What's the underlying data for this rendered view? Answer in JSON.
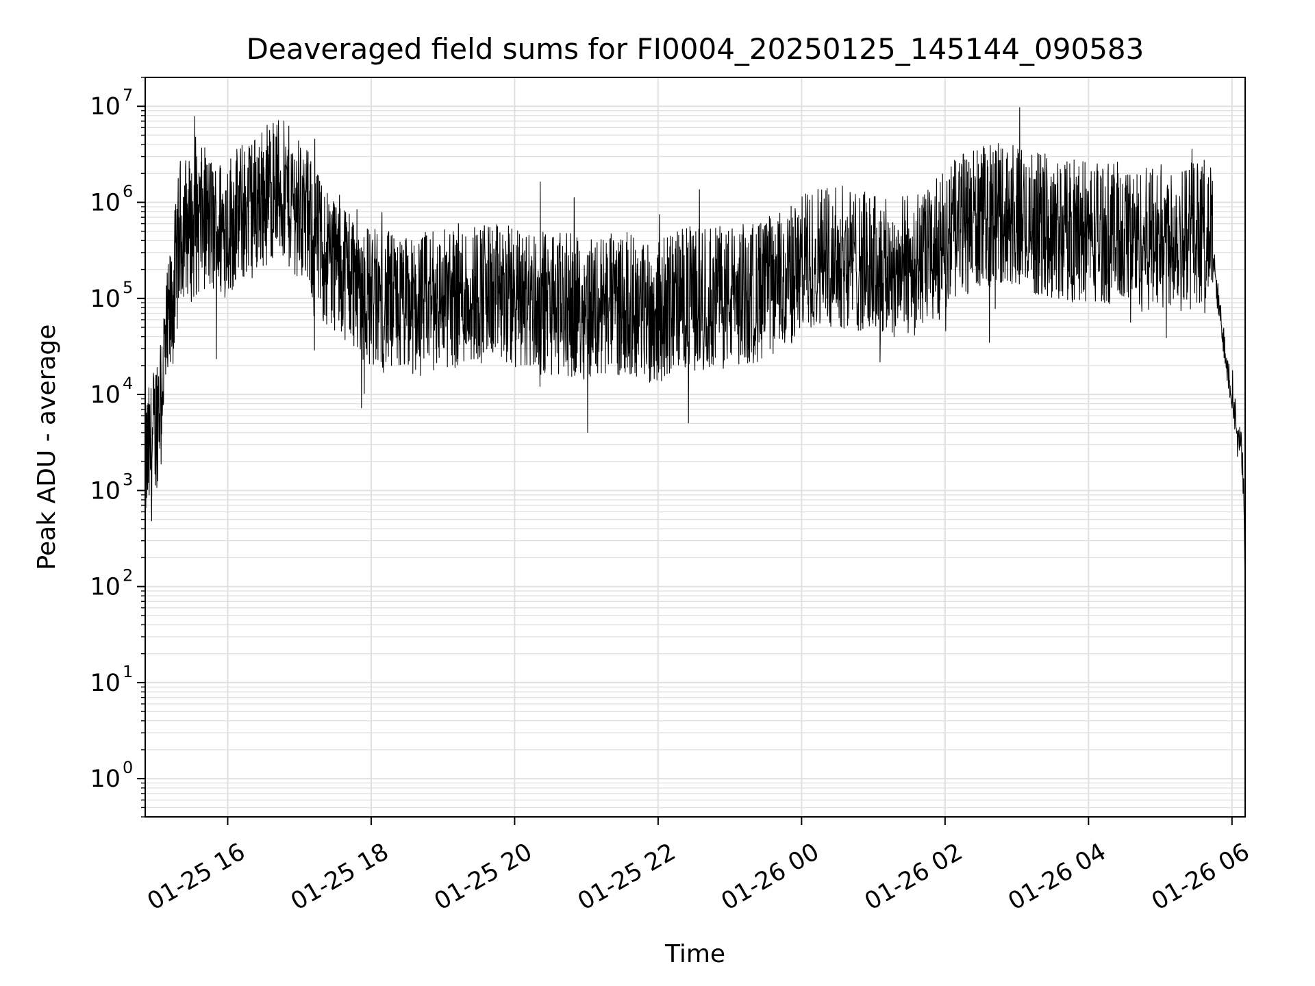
{
  "chart_data": {
    "type": "line",
    "title": "Deaveraged field sums for FI0004_20250125_145144_090583",
    "xlabel": "Time",
    "ylabel": "Peak ADU - average",
    "x_range": [
      "2025-01-25 14:51",
      "2025-01-26 06:11"
    ],
    "y_scale": "log",
    "ylim": [
      0.4,
      20000000
    ],
    "grid": true,
    "line_color": "#000000",
    "grid_color": "#e0e0e0",
    "x_ticks": [
      {
        "value": "2025-01-25 16:00",
        "label": "01-25 16"
      },
      {
        "value": "2025-01-25 18:00",
        "label": "01-25 18"
      },
      {
        "value": "2025-01-25 20:00",
        "label": "01-25 20"
      },
      {
        "value": "2025-01-25 22:00",
        "label": "01-25 22"
      },
      {
        "value": "2025-01-26 00:00",
        "label": "01-26 00"
      },
      {
        "value": "2025-01-26 02:00",
        "label": "01-26 02"
      },
      {
        "value": "2025-01-26 04:00",
        "label": "01-26 04"
      },
      {
        "value": "2025-01-26 06:00",
        "label": "01-26 06"
      }
    ],
    "y_ticks": [
      {
        "value": 1,
        "base": "10",
        "exp": "0"
      },
      {
        "value": 10,
        "base": "10",
        "exp": "1"
      },
      {
        "value": 100,
        "base": "10",
        "exp": "2"
      },
      {
        "value": 1000,
        "base": "10",
        "exp": "3"
      },
      {
        "value": 10000,
        "base": "10",
        "exp": "4"
      },
      {
        "value": 100000,
        "base": "10",
        "exp": "5"
      },
      {
        "value": 1000000,
        "base": "10",
        "exp": "6"
      },
      {
        "value": 10000000,
        "base": "10",
        "exp": "7"
      }
    ],
    "series": [
      {
        "x": [
          "2025-01-25 14:51",
          "2025-01-25 14:56",
          "2025-01-25 15:00",
          "2025-01-25 15:05",
          "2025-01-25 15:10",
          "2025-01-25 15:15",
          "2025-01-25 15:20",
          "2025-01-25 15:25",
          "2025-01-25 15:30",
          "2025-01-25 15:40",
          "2025-01-25 15:50",
          "2025-01-25 16:00",
          "2025-01-25 16:20",
          "2025-01-25 16:40",
          "2025-01-25 17:00",
          "2025-01-25 17:20",
          "2025-01-25 17:40",
          "2025-01-25 18:00",
          "2025-01-25 18:30",
          "2025-01-25 19:00",
          "2025-01-25 19:30",
          "2025-01-25 20:00",
          "2025-01-25 20:30",
          "2025-01-25 21:00",
          "2025-01-25 21:30",
          "2025-01-25 22:00",
          "2025-01-25 22:15",
          "2025-01-25 22:45",
          "2025-01-25 23:15",
          "2025-01-25 23:45",
          "2025-01-26 00:15",
          "2025-01-26 00:45",
          "2025-01-26 01:15",
          "2025-01-26 01:45",
          "2025-01-26 02:15",
          "2025-01-26 02:45",
          "2025-01-26 03:15",
          "2025-01-26 03:45",
          "2025-01-26 04:15",
          "2025-01-26 04:45",
          "2025-01-26 05:15",
          "2025-01-26 05:35",
          "2025-01-26 05:42",
          "2025-01-26 05:48",
          "2025-01-26 05:54",
          "2025-01-26 06:00",
          "2025-01-26 06:05",
          "2025-01-26 06:08",
          "2025-01-26 06:10",
          "2025-01-26 06:11"
        ],
        "y": [
          2000,
          2500,
          5000,
          15000,
          40000,
          120000,
          500000,
          600000,
          500000,
          700000,
          500000,
          600000,
          900000,
          1500000,
          900000,
          300000,
          200000,
          100000,
          80000,
          100000,
          120000,
          100000,
          90000,
          80000,
          90000,
          70000,
          100000,
          100000,
          110000,
          150000,
          300000,
          250000,
          200000,
          250000,
          600000,
          800000,
          600000,
          500000,
          500000,
          400000,
          500000,
          500000,
          500000,
          100000,
          30000,
          10000,
          4000,
          2500,
          1000,
          100
        ],
        "noise_decades": 0.75
      }
    ]
  }
}
